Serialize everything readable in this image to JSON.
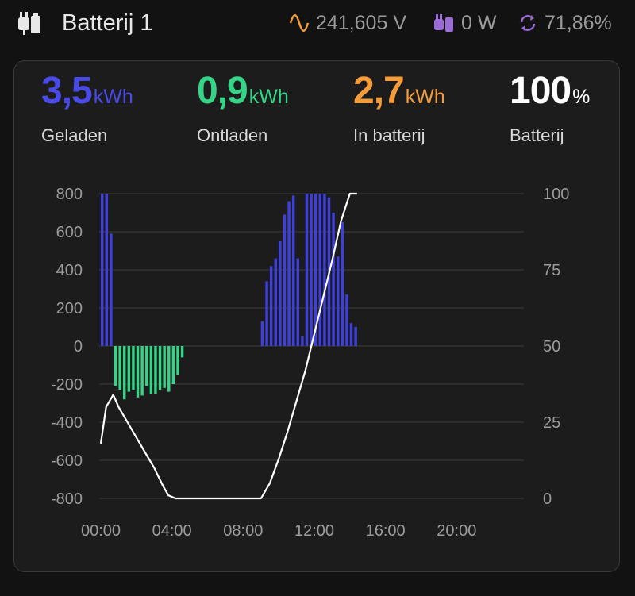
{
  "header": {
    "title": "Batterij 1",
    "voltage": "241,605 V",
    "power": "0 W",
    "efficiency": "71,86%",
    "icons": {
      "device": "battery-plug-icon",
      "voltage": "sine-wave-icon",
      "power": "plug-icon",
      "efficiency": "refresh-icon"
    }
  },
  "metrics": [
    {
      "value": "3,5",
      "unit": "kWh",
      "label": "Geladen",
      "color": "#4a4ae6"
    },
    {
      "value": "0,9",
      "unit": "kWh",
      "label": "Ontladen",
      "color": "#35d487"
    },
    {
      "value": "2,7",
      "unit": "kWh",
      "label": "In batterij",
      "color": "#f59c3a"
    },
    {
      "value": "100",
      "unit": "%",
      "label": "Batterij",
      "color": "#ffffff"
    }
  ],
  "chart_data": {
    "type": "bar",
    "left_axis": {
      "ticks": [
        "800",
        "600",
        "400",
        "200",
        "0",
        "-200",
        "-400",
        "-600",
        "-800"
      ],
      "range": [
        -800,
        800
      ]
    },
    "right_axis": {
      "ticks": [
        "100",
        "75",
        "50",
        "25",
        "0"
      ],
      "range": [
        0,
        100
      ]
    },
    "x_ticks": [
      "00:00",
      "04:00",
      "08:00",
      "12:00",
      "16:00",
      "20:00"
    ],
    "x_range_hours": [
      0,
      24
    ],
    "grid": true,
    "colors": {
      "charge": "#3f3fd9",
      "discharge": "#35d487",
      "soc_line": "#ffffff",
      "grid": "#3c3c3c"
    },
    "bars": [
      {
        "t": 0.0,
        "v": 800
      },
      {
        "t": 0.25,
        "v": 800
      },
      {
        "t": 0.5,
        "v": 590
      },
      {
        "t": 0.75,
        "v": -210
      },
      {
        "t": 1.0,
        "v": -230
      },
      {
        "t": 1.25,
        "v": -280
      },
      {
        "t": 1.5,
        "v": -240
      },
      {
        "t": 1.75,
        "v": -230
      },
      {
        "t": 2.0,
        "v": -270
      },
      {
        "t": 2.25,
        "v": -260
      },
      {
        "t": 2.5,
        "v": -210
      },
      {
        "t": 2.75,
        "v": -250
      },
      {
        "t": 3.0,
        "v": -250
      },
      {
        "t": 3.25,
        "v": -230
      },
      {
        "t": 3.5,
        "v": -220
      },
      {
        "t": 3.75,
        "v": -240
      },
      {
        "t": 4.0,
        "v": -200
      },
      {
        "t": 4.25,
        "v": -150
      },
      {
        "t": 4.5,
        "v": -60
      },
      {
        "t": 9.0,
        "v": 130
      },
      {
        "t": 9.25,
        "v": 340
      },
      {
        "t": 9.5,
        "v": 420
      },
      {
        "t": 9.75,
        "v": 460
      },
      {
        "t": 10.0,
        "v": 550
      },
      {
        "t": 10.25,
        "v": 690
      },
      {
        "t": 10.5,
        "v": 760
      },
      {
        "t": 10.75,
        "v": 790
      },
      {
        "t": 11.0,
        "v": 460
      },
      {
        "t": 11.25,
        "v": 50
      },
      {
        "t": 11.5,
        "v": 800
      },
      {
        "t": 11.75,
        "v": 800
      },
      {
        "t": 12.0,
        "v": 800
      },
      {
        "t": 12.25,
        "v": 800
      },
      {
        "t": 12.5,
        "v": 800
      },
      {
        "t": 12.75,
        "v": 780
      },
      {
        "t": 13.0,
        "v": 700
      },
      {
        "t": 13.25,
        "v": 470
      },
      {
        "t": 13.5,
        "v": 650
      },
      {
        "t": 13.75,
        "v": 270
      },
      {
        "t": 14.0,
        "v": 120
      },
      {
        "t": 14.25,
        "v": 100
      }
    ],
    "soc": [
      [
        0.0,
        18
      ],
      [
        0.3,
        30
      ],
      [
        0.7,
        34
      ],
      [
        1.0,
        30
      ],
      [
        1.5,
        25
      ],
      [
        2.0,
        20
      ],
      [
        2.5,
        15
      ],
      [
        3.0,
        10
      ],
      [
        3.5,
        4
      ],
      [
        3.8,
        1
      ],
      [
        4.2,
        0
      ],
      [
        9.0,
        0
      ],
      [
        9.5,
        5
      ],
      [
        10.0,
        13
      ],
      [
        10.5,
        22
      ],
      [
        11.0,
        32
      ],
      [
        11.5,
        42
      ],
      [
        12.0,
        54
      ],
      [
        12.5,
        66
      ],
      [
        13.0,
        78
      ],
      [
        13.5,
        91
      ],
      [
        14.0,
        100
      ],
      [
        14.4,
        100
      ]
    ]
  }
}
